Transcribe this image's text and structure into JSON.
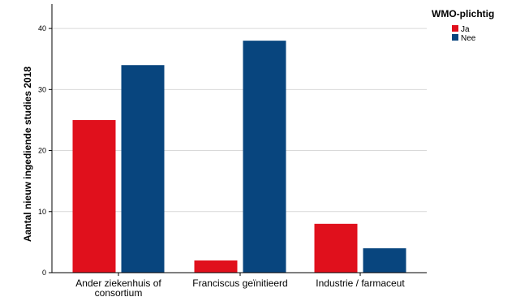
{
  "chart_data": {
    "type": "bar",
    "title": "",
    "xlabel": "",
    "ylabel": "Aantal nieuw ingediende studies 2018",
    "categories": [
      [
        "Ander ziekenhuis of",
        "consortium"
      ],
      [
        "Franciscus geïnitieerd"
      ],
      [
        "Industrie / farmaceut"
      ]
    ],
    "series": [
      {
        "name": "Ja",
        "color": "#e0101c",
        "values": [
          25,
          2,
          8
        ]
      },
      {
        "name": "Nee",
        "color": "#08457e",
        "values": [
          34,
          38,
          4
        ]
      }
    ],
    "ylim": [
      0,
      44
    ],
    "yticks": [
      0,
      10,
      20,
      30,
      40
    ],
    "grid": true,
    "legend": {
      "title": "WMO-plichtig",
      "placement": "top-right"
    }
  }
}
